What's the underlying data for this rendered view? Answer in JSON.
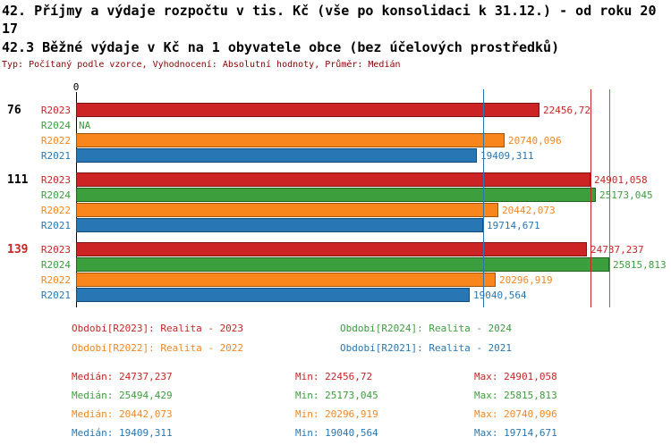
{
  "page": {
    "title": "42. Příjmy a výdaje rozpočtu v tis. Kč (vše po konsolidaci k 31.12.) - od roku 2017",
    "subtitle": "42.3 Běžné výdaje v Kč na 1 obyvatele obce (bez účelových prostředků)",
    "meta": "Typ: Počítaný podle vzorce, Vyhodnocení: Absolutní hodnoty, Průměr: Medián"
  },
  "colors": {
    "series": {
      "R2023": {
        "fill": "#cc2424",
        "border": "#7f1414"
      },
      "R2024": {
        "fill": "#3c9e3c",
        "border": "#1e661e"
      },
      "R2022": {
        "fill": "#f8861d",
        "border": "#a05408"
      },
      "R2021": {
        "fill": "#2877b4",
        "border": "#154c79"
      }
    },
    "axis": "#000000",
    "meta_text": "#8b0000"
  },
  "chart_data": {
    "type": "bar",
    "orientation": "horizontal",
    "title": "42.3 Běžné výdaje v Kč na 1 obyvatele obce (bez účelových prostředků)",
    "xlabel": "",
    "ylabel": "",
    "x_start_label": "0",
    "xlim": [
      0,
      27000
    ],
    "grid": false,
    "groups": [
      {
        "label": "76",
        "label_color": "#000000",
        "bars": [
          {
            "series": "R2023",
            "value": 22456.72,
            "value_label": "22456,72"
          },
          {
            "series": "R2024",
            "value": null,
            "value_label": "NA"
          },
          {
            "series": "R2022",
            "value": 20740.096,
            "value_label": "20740,096"
          },
          {
            "series": "R2021",
            "value": 19409.311,
            "value_label": "19409,311"
          }
        ]
      },
      {
        "label": "111",
        "label_color": "#000000",
        "bars": [
          {
            "series": "R2023",
            "value": 24901.058,
            "value_label": "24901,058"
          },
          {
            "series": "R2024",
            "value": 25173.045,
            "value_label": "25173,045"
          },
          {
            "series": "R2022",
            "value": 20442.073,
            "value_label": "20442,073"
          },
          {
            "series": "R2021",
            "value": 19714.671,
            "value_label": "19714,671"
          }
        ]
      },
      {
        "label": "139",
        "label_color": "#cc2424",
        "bars": [
          {
            "series": "R2023",
            "value": 24737.237,
            "value_label": "24737,237"
          },
          {
            "series": "R2024",
            "value": 25815.813,
            "value_label": "25815,813"
          },
          {
            "series": "R2022",
            "value": 20296.919,
            "value_label": "20296,919"
          },
          {
            "series": "R2021",
            "value": 19040.564,
            "value_label": "19040,564"
          }
        ]
      }
    ],
    "reference_lines": [
      {
        "series": "R2023",
        "value": 24901.058
      },
      {
        "series": "R2024",
        "value": 25815.813
      },
      {
        "series": "R2021",
        "value": 19714.671
      }
    ],
    "legend": [
      {
        "series": "R2023",
        "label": "Období[R2023]: Realita - 2023",
        "col": 0,
        "row": 0
      },
      {
        "series": "R2024",
        "label": "Období[R2024]: Realita - 2024",
        "col": 1,
        "row": 0
      },
      {
        "series": "R2022",
        "label": "Období[R2022]: Realita - 2022",
        "col": 0,
        "row": 1
      },
      {
        "series": "R2021",
        "label": "Období[R2021]: Realita - 2021",
        "col": 1,
        "row": 1
      }
    ],
    "stats_labels": {
      "median": "Medián",
      "min": "Min",
      "max": "Max"
    },
    "stats": [
      {
        "series": "R2023",
        "median": "24737,237",
        "min": "22456,72",
        "max": "24901,058"
      },
      {
        "series": "R2024",
        "median": "25494,429",
        "min": "25173,045",
        "max": "25815,813"
      },
      {
        "series": "R2022",
        "median": "20442,073",
        "min": "20296,919",
        "max": "20740,096"
      },
      {
        "series": "R2021",
        "median": "19409,311",
        "min": "19040,564",
        "max": "19714,671"
      }
    ]
  }
}
